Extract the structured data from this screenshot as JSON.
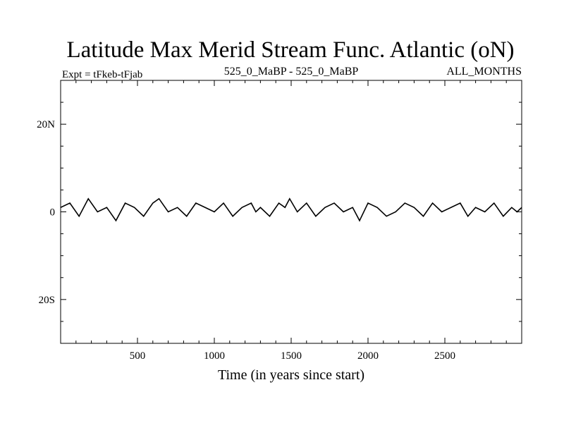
{
  "chart_data": {
    "type": "line",
    "title": "Latitude Max Merid Stream Func. Atlantic (oN)",
    "subtitle_left": "Expt = tFkeb-tFjab",
    "subtitle_center": "525_0_MaBP - 525_0_MaBP",
    "subtitle_right": "ALL_MONTHS",
    "xlabel": "Time (in years since start)",
    "ylabel": "",
    "xlim": [
      0,
      3000
    ],
    "ylim": [
      -30,
      30
    ],
    "x_ticks": [
      500,
      1000,
      1500,
      2000,
      2500
    ],
    "x_tick_labels": [
      "500",
      "1000",
      "1500",
      "2000",
      "2500"
    ],
    "y_ticks": [
      20,
      0,
      -20
    ],
    "y_tick_labels": [
      "20N",
      "0",
      "20S"
    ],
    "grid": false,
    "series": [
      {
        "x": [
          0,
          60,
          120,
          180,
          240,
          300,
          360,
          420,
          480,
          540,
          600,
          640,
          700,
          760,
          820,
          880,
          940,
          1000,
          1060,
          1120,
          1180,
          1240,
          1270,
          1300,
          1360,
          1420,
          1460,
          1490,
          1540,
          1600,
          1660,
          1720,
          1780,
          1840,
          1900,
          1945,
          2000,
          2060,
          2120,
          2180,
          2240,
          2300,
          2360,
          2420,
          2480,
          2540,
          2600,
          2650,
          2700,
          2760,
          2820,
          2880,
          2935,
          2970,
          3000
        ],
        "values": [
          1,
          2,
          -1,
          3,
          0,
          1,
          -2,
          2,
          1,
          -1,
          2,
          3,
          0,
          1,
          -1,
          2,
          1,
          0,
          2,
          -1,
          1,
          2,
          0,
          1,
          -1,
          2,
          1,
          3,
          0,
          2,
          -1,
          1,
          2,
          0,
          1,
          -2,
          2,
          1,
          -1,
          0,
          2,
          1,
          -1,
          2,
          0,
          1,
          2,
          -1,
          1,
          0,
          2,
          -1,
          1,
          0,
          1
        ]
      }
    ]
  }
}
